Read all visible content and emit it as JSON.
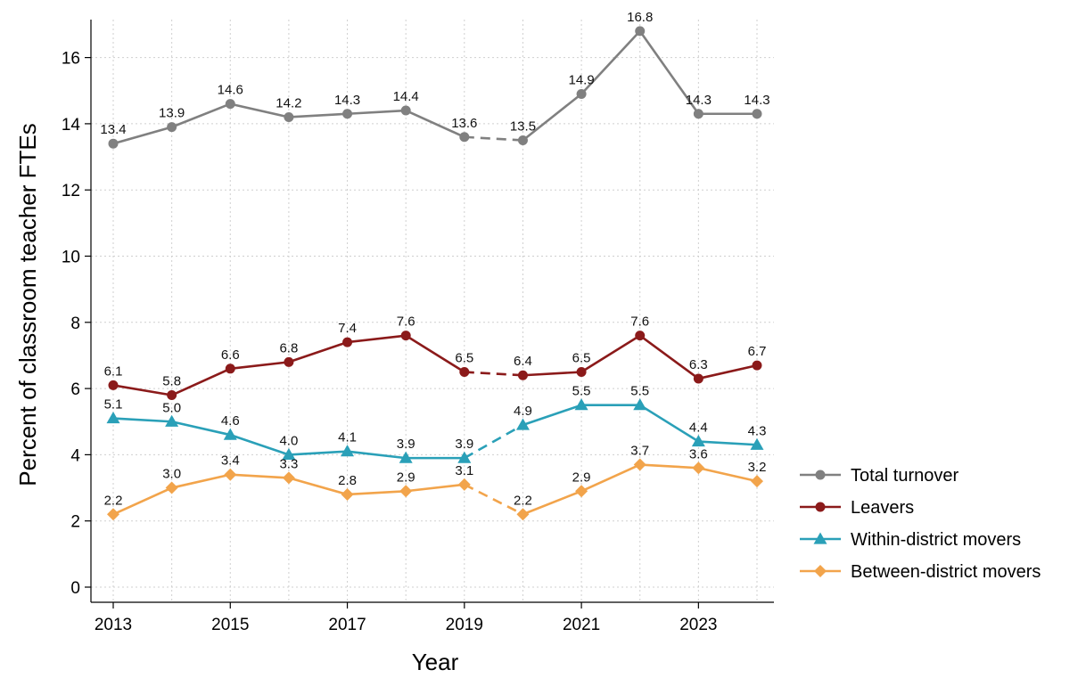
{
  "chart_data": {
    "type": "line",
    "xlabel": "Year",
    "ylabel": "Percent of classroom teacher FTEs",
    "xlim": [
      2013,
      2024
    ],
    "ylim": [
      0,
      17
    ],
    "x_ticks": [
      2013,
      2015,
      2017,
      2019,
      2021,
      2023
    ],
    "y_ticks": [
      0,
      2,
      4,
      6,
      8,
      10,
      12,
      14,
      16
    ],
    "grid": true,
    "legend_position": "right",
    "gap": {
      "from": 2019,
      "to": 2020,
      "style": "dashed"
    },
    "x": [
      2013,
      2014,
      2015,
      2016,
      2017,
      2018,
      2019,
      2020,
      2021,
      2022,
      2023,
      2024
    ],
    "series": [
      {
        "name": "Total turnover",
        "color": "#808080",
        "marker": "circle",
        "values": [
          13.4,
          13.9,
          14.6,
          14.2,
          14.3,
          14.4,
          13.6,
          13.5,
          14.9,
          16.8,
          14.3,
          14.3
        ],
        "labels": [
          "13.4",
          "13.9",
          "14.6",
          "14.2",
          "14.3",
          "14.4",
          "13.6",
          "13.5",
          "14.9",
          "16.8",
          "14.3",
          "14.3"
        ]
      },
      {
        "name": "Leavers",
        "color": "#8b1a1a",
        "marker": "circle",
        "values": [
          6.1,
          5.8,
          6.6,
          6.8,
          7.4,
          7.6,
          6.5,
          6.4,
          6.5,
          7.6,
          6.3,
          6.7
        ],
        "labels": [
          "6.1",
          "5.8",
          "6.6",
          "6.8",
          "7.4",
          "7.6",
          "6.5",
          "6.4",
          "6.5",
          "7.6",
          "6.3",
          "6.7"
        ]
      },
      {
        "name": "Within-district movers",
        "color": "#2aa0b8",
        "marker": "triangle",
        "values": [
          5.1,
          5.0,
          4.6,
          4.0,
          4.1,
          3.9,
          3.9,
          4.9,
          5.5,
          5.5,
          4.4,
          4.3
        ],
        "labels": [
          "5.1",
          "5.0",
          "4.6",
          "4.0",
          "4.1",
          "3.9",
          "3.9",
          "4.9",
          "5.5",
          "5.5",
          "4.4",
          "4.3"
        ]
      },
      {
        "name": "Between-district movers",
        "color": "#f2a44b",
        "marker": "diamond",
        "values": [
          2.2,
          3.0,
          3.4,
          3.3,
          2.8,
          2.9,
          3.1,
          2.2,
          2.9,
          3.7,
          3.6,
          3.2
        ],
        "labels": [
          "2.2",
          "3.0",
          "3.4",
          "3.3",
          "2.8",
          "2.9",
          "3.1",
          "2.2",
          "2.9",
          "3.7",
          "3.6",
          "3.2"
        ]
      }
    ]
  }
}
